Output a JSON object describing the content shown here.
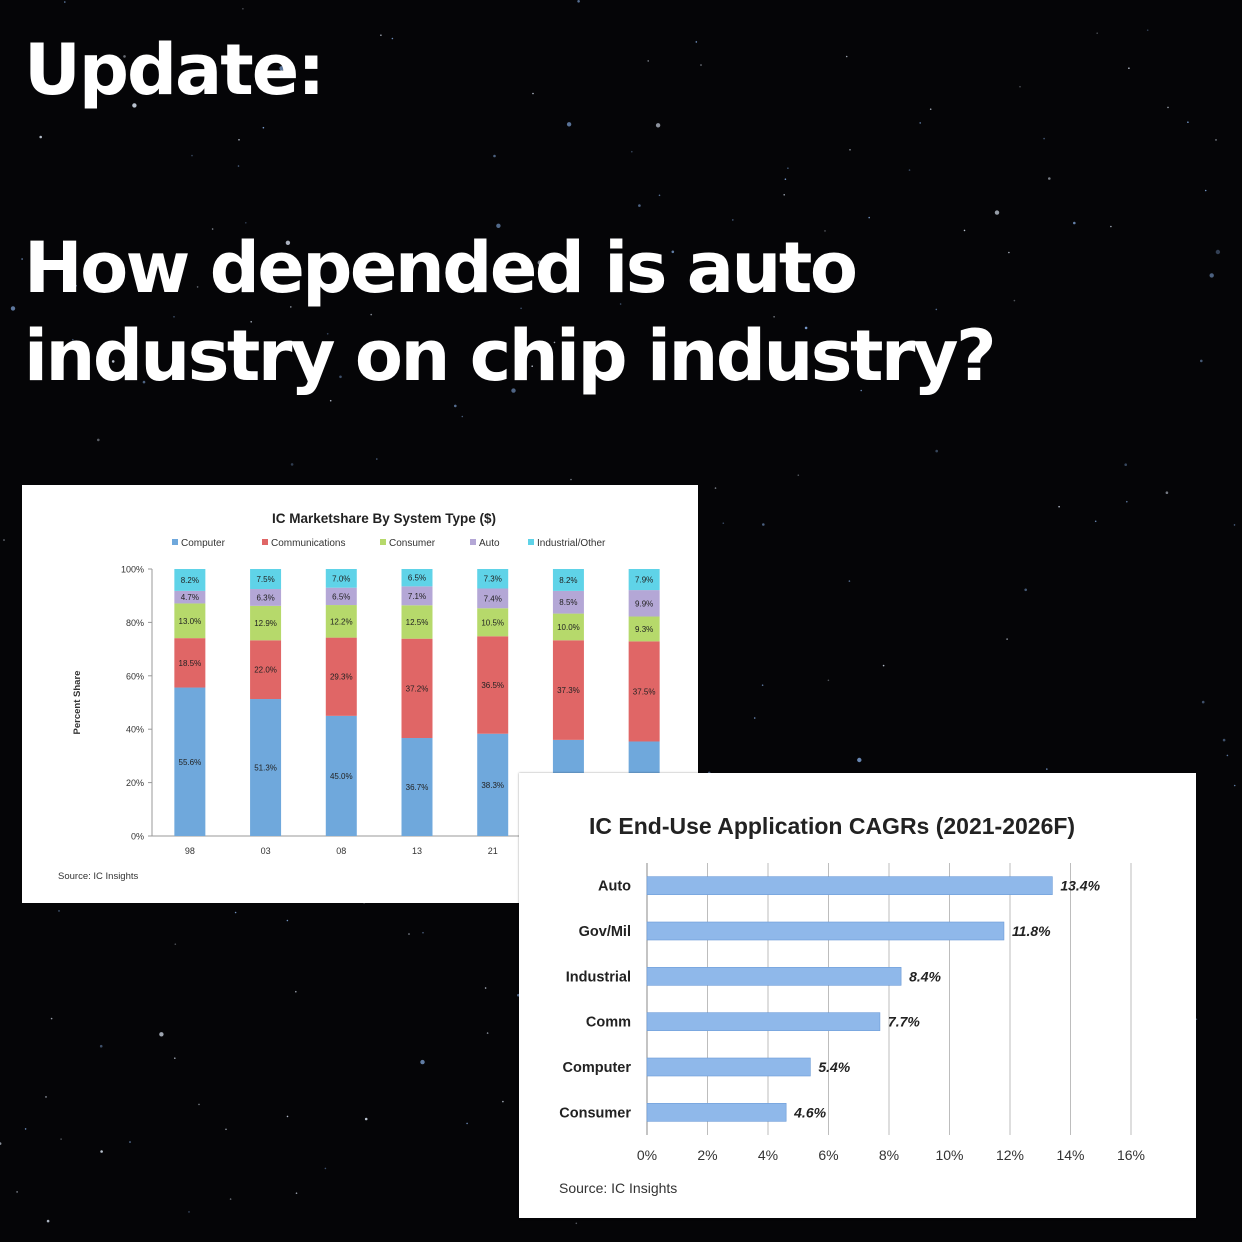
{
  "headline": {
    "update": "Update:",
    "question_line1": "How depended is auto",
    "question_line2": "industry on chip industry?"
  },
  "chart_data": [
    {
      "type": "bar",
      "stacked": true,
      "title": "IC Marketshare By System Type ($)",
      "ylabel": "Percent Share",
      "ylim": [
        0,
        100
      ],
      "y_ticks": [
        "0%",
        "20%",
        "40%",
        "60%",
        "80%",
        "100%"
      ],
      "categories": [
        "98",
        "03",
        "08",
        "13",
        "21",
        "",
        ""
      ],
      "series": [
        {
          "name": "Computer",
          "color": "#6fa8dc",
          "values": [
            55.6,
            51.3,
            45.0,
            36.7,
            38.3,
            36.0,
            35.4
          ],
          "labels": [
            "55.6%",
            "51.3%",
            "45.0%",
            "36.7%",
            "38.3%",
            "",
            ""
          ]
        },
        {
          "name": "Communications",
          "color": "#e06666",
          "values": [
            18.5,
            22.0,
            29.3,
            37.2,
            36.5,
            37.3,
            37.5
          ],
          "labels": [
            "18.5%",
            "22.0%",
            "29.3%",
            "37.2%",
            "36.5%",
            "37.3%",
            "37.5%"
          ]
        },
        {
          "name": "Consumer",
          "color": "#b6d96b",
          "values": [
            13.0,
            12.9,
            12.2,
            12.5,
            10.5,
            10.0,
            9.3
          ],
          "labels": [
            "13.0%",
            "12.9%",
            "12.2%",
            "12.5%",
            "10.5%",
            "10.0%",
            "9.3%"
          ]
        },
        {
          "name": "Auto",
          "color": "#b4a7d6",
          "values": [
            4.7,
            6.3,
            6.5,
            7.1,
            7.4,
            8.5,
            9.9
          ],
          "labels": [
            "4.7%",
            "6.3%",
            "6.5%",
            "7.1%",
            "7.4%",
            "8.5%",
            "9.9%"
          ]
        },
        {
          "name": "Industrial/Other",
          "color": "#5fd3e8",
          "values": [
            8.2,
            7.5,
            7.0,
            6.5,
            7.3,
            8.2,
            7.9
          ],
          "labels": [
            "8.2%",
            "7.5%",
            "7.0%",
            "6.5%",
            "7.3%",
            "8.2%",
            "7.9%"
          ]
        }
      ],
      "legend": "top",
      "source": "Source: IC Insights"
    },
    {
      "type": "bar",
      "orientation": "horizontal",
      "title": "IC End-Use Application CAGRs (2021-2026F)",
      "categories": [
        "Auto",
        "Gov/Mil",
        "Industrial",
        "Comm",
        "Computer",
        "Consumer"
      ],
      "values": [
        13.4,
        11.8,
        8.4,
        7.7,
        5.4,
        4.6
      ],
      "value_labels": [
        "13.4%",
        "11.8%",
        "8.4%",
        "7.7%",
        "5.4%",
        "4.6%"
      ],
      "xlim": [
        0,
        16
      ],
      "x_ticks": [
        "0%",
        "2%",
        "4%",
        "6%",
        "8%",
        "10%",
        "12%",
        "14%",
        "16%"
      ],
      "bar_color": "#8fb8ea",
      "grid": true,
      "source": "Source:  IC Insights"
    }
  ]
}
